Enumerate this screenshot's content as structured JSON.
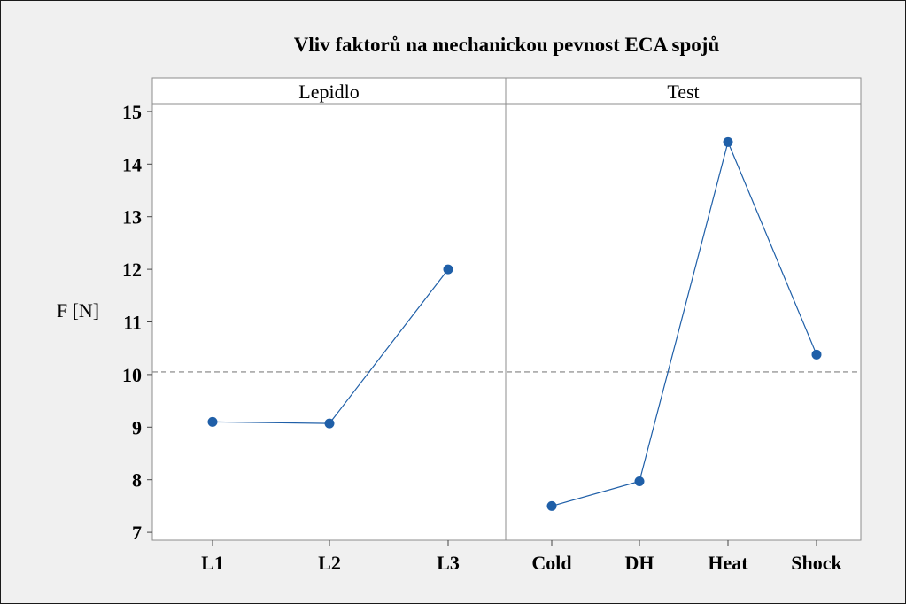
{
  "chart_data": {
    "type": "line",
    "title": "Vliv faktorů na mechanickou pevnost ECA spojů",
    "ylabel": "F [N]",
    "xlabel": "",
    "ylim": [
      6.85,
      15.15
    ],
    "yticks": [
      7,
      8,
      9,
      10,
      11,
      12,
      13,
      14,
      15
    ],
    "reference_line": 10.05,
    "grid": false,
    "colors": {
      "series": "#1f5fa8",
      "reference": "#808080",
      "background": "#f0f0f0",
      "plot_bg": "#ffffff"
    },
    "panels": [
      {
        "name": "Lepidlo",
        "categories": [
          "L1",
          "L2",
          "L3"
        ],
        "values": [
          9.1,
          9.07,
          12.0
        ]
      },
      {
        "name": "Test",
        "categories": [
          "Cold",
          "DH",
          "Heat",
          "Shock"
        ],
        "values": [
          7.5,
          7.97,
          14.42,
          10.38
        ]
      }
    ]
  }
}
